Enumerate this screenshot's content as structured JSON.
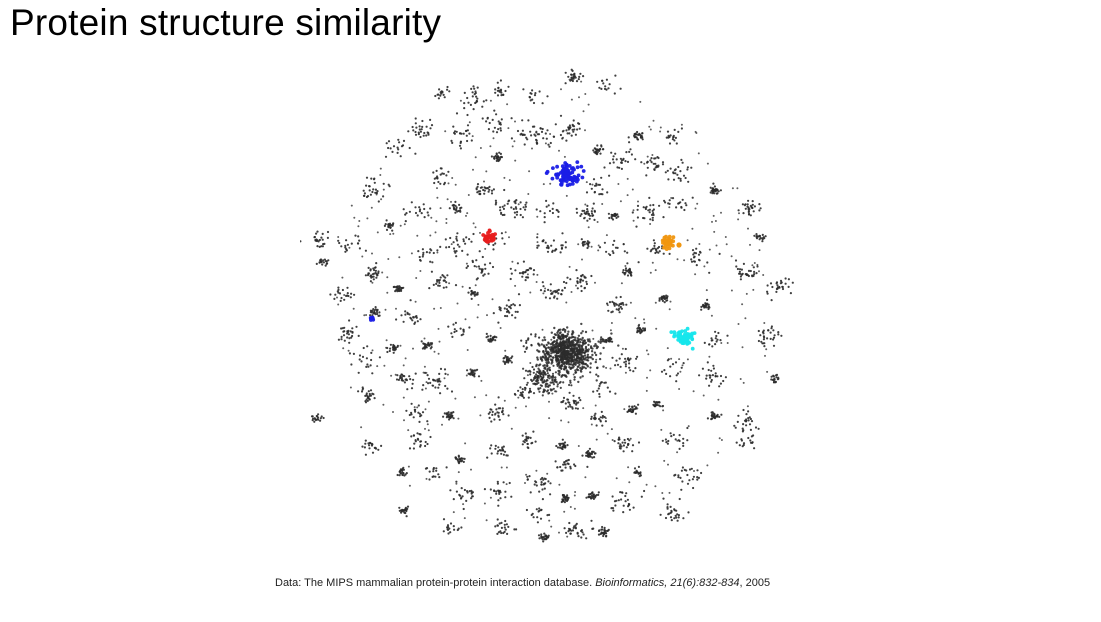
{
  "slide": {
    "title": "Protein structure similarity"
  },
  "caption": {
    "prefix": "Data: The MIPS mammalian protein-protein interaction database.",
    "journal": "Bioinformatics, 21(6):832-834",
    "year_text": ", 2005"
  },
  "colors": {
    "node_default": "#2b2b2b",
    "highlight_blue": "#1a1ee6",
    "highlight_red": "#e81c1c",
    "highlight_orange": "#f0960f",
    "highlight_cyan": "#16e6ec"
  }
}
